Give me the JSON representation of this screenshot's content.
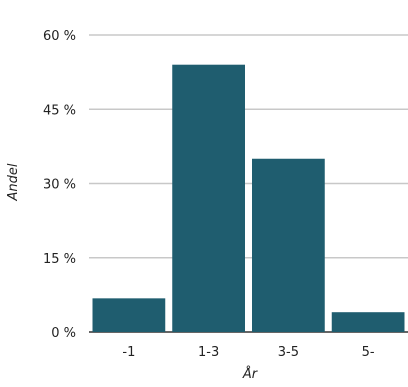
{
  "chart_data": {
    "type": "bar",
    "title": "",
    "xlabel": "År",
    "ylabel": "Andel",
    "categories": [
      "-1",
      "1-3",
      "3-5",
      "5-"
    ],
    "values": [
      6.8,
      54.0,
      35.0,
      4.0
    ],
    "ylim": [
      0,
      60
    ],
    "yticks": [
      0,
      15,
      30,
      45,
      60
    ],
    "ytick_labels": [
      "0 %",
      "15 %",
      "30 %",
      "45 %",
      "60 %"
    ],
    "grid": true,
    "legend": "none",
    "colors": {
      "bar": "#1f5d6f",
      "grid": "#c8c8c8",
      "baseline": "#333333"
    }
  }
}
